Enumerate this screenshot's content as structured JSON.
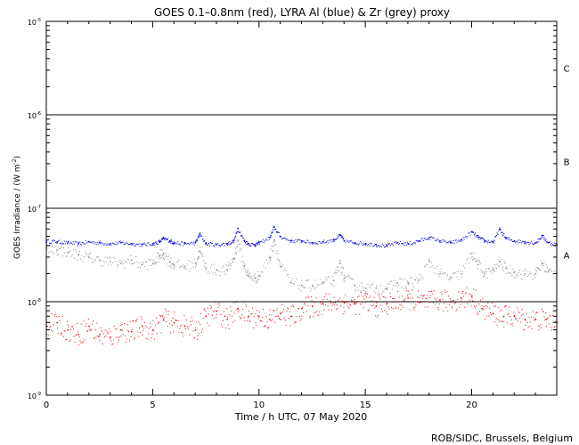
{
  "chart_data": {
    "type": "scatter",
    "title": "GOES 0.1–0.8nm (red), LYRA Al (blue) & Zr (grey) proxy",
    "xlabel": "Time / h UTC, 07 May 2020",
    "ylabel": "GOES Irradiance / (W m",
    "ylabel_sup": "-2",
    "ylabel_close": ")",
    "xlim": [
      0,
      24
    ],
    "ylim": [
      1e-09,
      1e-05
    ],
    "yscale": "log",
    "x_ticks": [
      {
        "value": 0,
        "label": "0"
      },
      {
        "value": 5,
        "label": "5"
      },
      {
        "value": 10,
        "label": "10"
      },
      {
        "value": 15,
        "label": "15"
      },
      {
        "value": 20,
        "label": "20"
      }
    ],
    "y_ticks": [
      {
        "value": 1e-09,
        "base": "10",
        "exp": "-9"
      },
      {
        "value": 1e-08,
        "base": "10",
        "exp": "-8"
      },
      {
        "value": 1e-07,
        "base": "10",
        "exp": "-7"
      },
      {
        "value": 1e-06,
        "base": "10",
        "exp": "-6"
      },
      {
        "value": 1e-05,
        "base": "10",
        "exp": "-5"
      }
    ],
    "class_lines": [
      {
        "label": "A",
        "value": 1e-08
      },
      {
        "label": "B",
        "value": 1e-07
      },
      {
        "label": "C",
        "value": 1e-06
      }
    ],
    "series": [
      {
        "color": "#0000dd",
        "x": [
          0,
          0.5,
          1.0,
          1.5,
          2.0,
          2.5,
          3.0,
          3.5,
          4.0,
          4.5,
          5.0,
          5.3,
          5.5,
          5.8,
          6.0,
          6.5,
          7.0,
          7.2,
          7.5,
          8.0,
          8.5,
          8.8,
          9.0,
          9.3,
          9.5,
          9.8,
          10.0,
          10.5,
          10.7,
          11.0,
          11.5,
          12.0,
          12.5,
          13.0,
          13.5,
          13.8,
          14.0,
          14.5,
          15.0,
          15.5,
          16.0,
          16.5,
          17.0,
          17.5,
          18.0,
          18.5,
          19.0,
          19.5,
          20.0,
          20.3,
          20.6,
          21.0,
          21.3,
          21.6,
          22.0,
          22.5,
          23.0,
          23.3,
          23.6,
          24.0
        ],
        "y": [
          4.5e-08,
          4.4e-08,
          4.3e-08,
          4.2e-08,
          4.4e-08,
          4.3e-08,
          4.2e-08,
          4.3e-08,
          4.2e-08,
          4.1e-08,
          4.2e-08,
          4.4e-08,
          4.8e-08,
          4.5e-08,
          4.3e-08,
          4.2e-08,
          4.3e-08,
          5.3e-08,
          4.2e-08,
          4.1e-08,
          4.2e-08,
          4.5e-08,
          6.1e-08,
          4.5e-08,
          4.2e-08,
          4.1e-08,
          4.3e-08,
          4.9e-08,
          6.3e-08,
          5e-08,
          4.5e-08,
          4.5e-08,
          4.3e-08,
          4.4e-08,
          4.6e-08,
          5.2e-08,
          4.5e-08,
          4.3e-08,
          4.2e-08,
          4.1e-08,
          4e-08,
          4.3e-08,
          4.2e-08,
          4.5e-08,
          4.9e-08,
          4.5e-08,
          4.3e-08,
          4.6e-08,
          5.6e-08,
          4.9e-08,
          4.5e-08,
          4.4e-08,
          6e-08,
          4.8e-08,
          4.5e-08,
          4.4e-08,
          4.3e-08,
          5.1e-08,
          4.3e-08,
          4.1e-08
        ]
      },
      {
        "color": "#888888",
        "x": [
          0,
          0.5,
          1.0,
          1.5,
          2.0,
          2.5,
          3.0,
          3.5,
          4.0,
          4.5,
          5.0,
          5.3,
          5.5,
          5.8,
          6.0,
          6.5,
          7.0,
          7.2,
          7.5,
          8.0,
          8.5,
          8.8,
          9.0,
          9.3,
          9.5,
          9.8,
          10.0,
          10.5,
          10.7,
          11.0,
          11.5,
          12.0,
          12.5,
          13.0,
          13.5,
          13.8,
          14.0,
          14.5,
          15.0,
          15.5,
          16.0,
          16.5,
          17.0,
          17.5,
          18.0,
          18.5,
          19.0,
          19.5,
          20.0,
          20.3,
          20.6,
          21.0,
          21.3,
          21.6,
          22.0,
          22.5,
          23.0,
          23.3,
          23.6,
          24.0
        ],
        "y": [
          3.7e-08,
          3.6e-08,
          3.4e-08,
          3.2e-08,
          3e-08,
          2.8e-08,
          2.7e-08,
          2.6e-08,
          2.8e-08,
          2.5e-08,
          2.6e-08,
          3.1e-08,
          3.3e-08,
          2.7e-08,
          2.5e-08,
          2.4e-08,
          2.6e-08,
          3.5e-08,
          2.3e-08,
          2.2e-08,
          2.2e-08,
          2.9e-08,
          4.5e-08,
          2.4e-08,
          1.9e-08,
          1.8e-08,
          1.9e-08,
          3e-08,
          4.6e-08,
          2.4e-08,
          1.6e-08,
          1.5e-08,
          1.5e-08,
          1.6e-08,
          1.7e-08,
          2.6e-08,
          1.8e-08,
          1.5e-08,
          1.4e-08,
          1.4e-08,
          1.4e-08,
          1.6e-08,
          1.6e-08,
          1.7e-08,
          2.7e-08,
          2e-08,
          1.8e-08,
          2e-08,
          3.3e-08,
          2.5e-08,
          2e-08,
          2.2e-08,
          2.7e-08,
          2.3e-08,
          2.1e-08,
          2e-08,
          2e-08,
          2.6e-08,
          2.1e-08,
          2e-08
        ]
      },
      {
        "color": "#dd0000",
        "x": [
          0,
          0.5,
          1.0,
          1.5,
          2.0,
          2.5,
          3.0,
          3.5,
          4.0,
          4.5,
          5.0,
          5.5,
          6.0,
          6.5,
          7.0,
          7.5,
          8.0,
          8.5,
          9.0,
          9.5,
          10.0,
          10.5,
          11.0,
          11.5,
          12.0,
          12.5,
          13.0,
          13.5,
          14.0,
          14.5,
          15.0,
          15.5,
          16.0,
          16.5,
          17.0,
          17.5,
          18.0,
          18.5,
          19.0,
          19.5,
          20.0,
          20.5,
          21.0,
          21.5,
          22.0,
          22.5,
          23.0,
          23.5,
          24.0
        ],
        "y": [
          5.5e-09,
          6e-09,
          5e-09,
          4.5e-09,
          5.5e-09,
          4.5e-09,
          4.2e-09,
          5e-09,
          4.8e-09,
          5.5e-09,
          5e-09,
          6.5e-09,
          6e-09,
          5.5e-09,
          5e-09,
          7e-09,
          8e-09,
          6.5e-09,
          8.5e-09,
          7e-09,
          7e-09,
          6.5e-09,
          7.5e-09,
          7e-09,
          8.5e-09,
          9e-09,
          9.5e-09,
          1e-08,
          9.8e-09,
          9.5e-09,
          1e-08,
          9e-09,
          9.5e-09,
          1e-08,
          1.1e-08,
          1e-08,
          1e-08,
          1.05e-08,
          1e-08,
          1.1e-08,
          1.15e-08,
          8.5e-09,
          7.5e-09,
          7e-09,
          7e-09,
          6.5e-09,
          6.5e-09,
          6.5e-09,
          6e-09
        ]
      }
    ]
  },
  "footer": {
    "credit": "ROB/SIDC, Brussels, Belgium"
  }
}
